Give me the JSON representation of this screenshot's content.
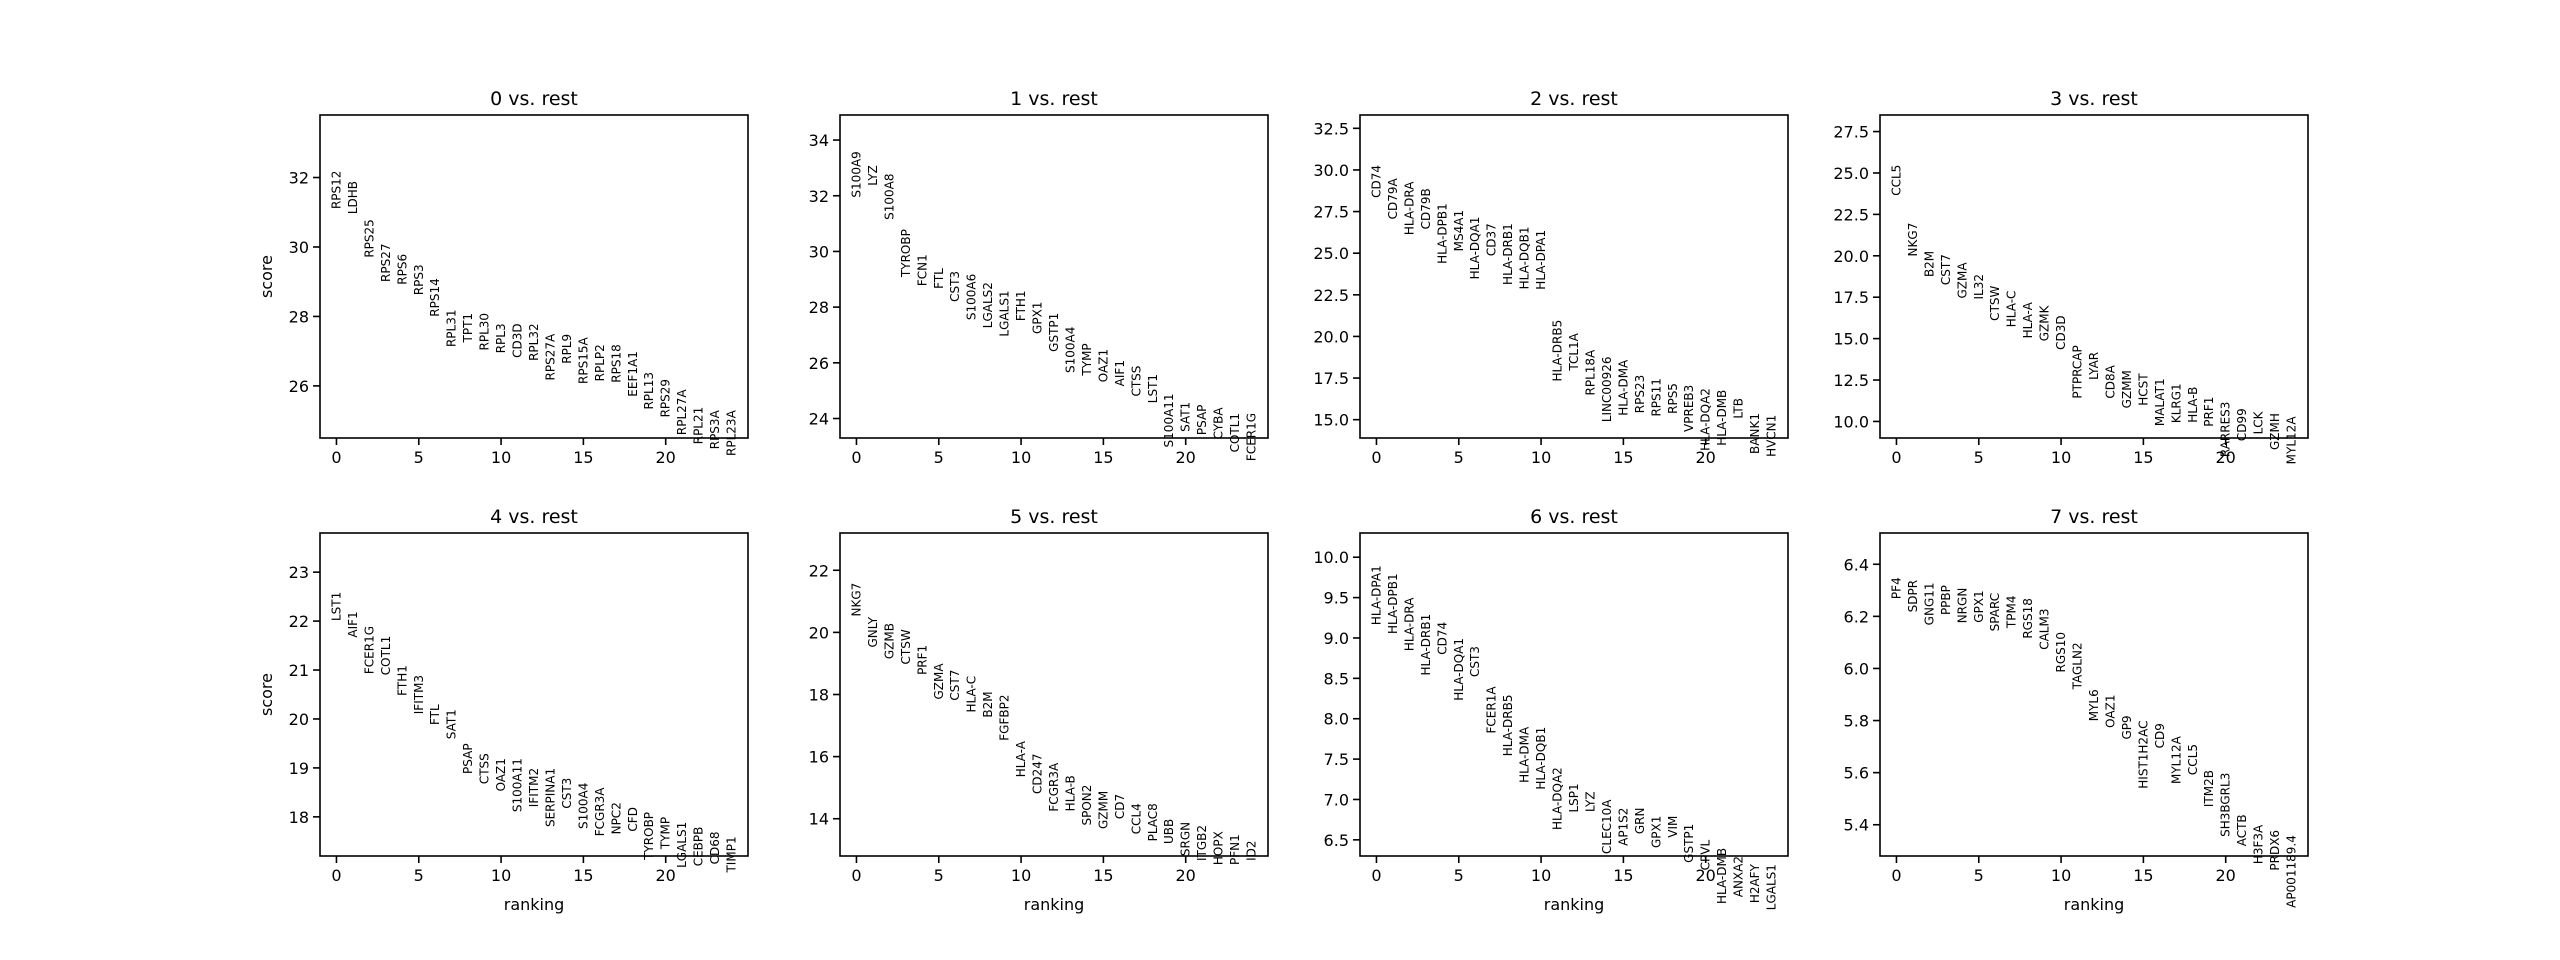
{
  "chart_data": [
    {
      "type": "scatter",
      "title": "0 vs. rest",
      "xlabel": "",
      "ylabel": "score",
      "xlim": [
        -1,
        25
      ],
      "ylim": [
        24.5,
        33.8
      ],
      "xticks": [
        0,
        5,
        10,
        15,
        20
      ],
      "yticks": [
        26,
        28,
        30,
        32
      ],
      "ytick_labels": [
        "26",
        "28",
        "30",
        "32"
      ],
      "genes": [
        "RPS12",
        "LDHB",
        "RPS25",
        "RPS27",
        "RPS6",
        "RPS3",
        "RPS14",
        "RPL31",
        "TPT1",
        "RPL30",
        "RPL3",
        "CD3D",
        "RPL32",
        "RPS27A",
        "RPL9",
        "RPS15A",
        "RPLP2",
        "RPS18",
        "EEF1A1",
        "RPL13",
        "RPS29",
        "RPL27A",
        "RPL21",
        "RPS3A",
        "RPL23A"
      ],
      "scores": [
        32.2,
        31.9,
        30.8,
        30.1,
        29.8,
        29.5,
        29.1,
        28.2,
        28.1,
        28.1,
        27.8,
        27.8,
        27.8,
        27.5,
        27.5,
        27.4,
        27.2,
        27.2,
        27.0,
        26.4,
        26.2,
        25.9,
        25.4,
        25.3,
        25.3
      ]
    },
    {
      "type": "scatter",
      "title": "1 vs. rest",
      "xlabel": "",
      "ylabel": "",
      "xlim": [
        -1,
        25
      ],
      "ylim": [
        23.3,
        34.9
      ],
      "xticks": [
        0,
        5,
        10,
        15,
        20
      ],
      "yticks": [
        24,
        26,
        28,
        30,
        32,
        34
      ],
      "ytick_labels": [
        "24",
        "26",
        "28",
        "30",
        "32",
        "34"
      ],
      "genes": [
        "S100A9",
        "LYZ",
        "S100A8",
        "TYROBP",
        "FCN1",
        "FTL",
        "CST3",
        "S100A6",
        "LGALS2",
        "LGALS1",
        "FTH1",
        "GPX1",
        "GSTP1",
        "S100A4",
        "TYMP",
        "OAZ1",
        "AIF1",
        "CTSS",
        "LST1",
        "S100A11",
        "SAT1",
        "PSAP",
        "CYBA",
        "COTL1",
        "FCER1G"
      ],
      "scores": [
        33.6,
        33.1,
        32.8,
        30.8,
        29.9,
        29.4,
        29.3,
        29.2,
        28.9,
        28.6,
        28.6,
        28.2,
        27.8,
        27.3,
        26.7,
        26.5,
        26.1,
        25.9,
        25.6,
        24.9,
        24.6,
        24.5,
        24.4,
        24.2,
        24.2
      ]
    },
    {
      "type": "scatter",
      "title": "2 vs. rest",
      "xlabel": "",
      "ylabel": "",
      "xlim": [
        -1,
        25
      ],
      "ylim": [
        13.9,
        33.3
      ],
      "xticks": [
        0,
        5,
        10,
        15,
        20
      ],
      "yticks": [
        15.0,
        17.5,
        20.0,
        22.5,
        25.0,
        27.5,
        30.0,
        32.5
      ],
      "ytick_labels": [
        "15.0",
        "17.5",
        "20.0",
        "22.5",
        "25.0",
        "27.5",
        "30.0",
        "32.5"
      ],
      "genes": [
        "CD74",
        "CD79A",
        "HLA-DRA",
        "CD79B",
        "HLA-DPB1",
        "MS4A1",
        "HLA-DQA1",
        "CD37",
        "HLA-DRB1",
        "HLA-DQB1",
        "HLA-DPA1",
        "HLA-DRB5",
        "TCL1A",
        "RPL18A",
        "LINC00926",
        "HLA-DMA",
        "RPS23",
        "RPS11",
        "RPS5",
        "VPREB3",
        "HLA-DQA2",
        "HLA-DMB",
        "LTB",
        "BANK1",
        "HVCN1"
      ],
      "scores": [
        30.3,
        29.5,
        29.3,
        28.9,
        28.0,
        27.6,
        27.2,
        26.8,
        26.8,
        26.6,
        26.4,
        21.0,
        20.2,
        19.2,
        18.8,
        18.6,
        17.7,
        17.5,
        17.2,
        17.1,
        16.9,
        16.8,
        16.3,
        15.4,
        15.3
      ]
    },
    {
      "type": "scatter",
      "title": "3 vs. rest",
      "xlabel": "",
      "ylabel": "",
      "xlim": [
        -1,
        25
      ],
      "ylim": [
        9.0,
        28.5
      ],
      "xticks": [
        0,
        5,
        10,
        15,
        20
      ],
      "yticks": [
        10.0,
        12.5,
        15.0,
        17.5,
        20.0,
        22.5,
        25.0,
        27.5
      ],
      "ytick_labels": [
        "10.0",
        "12.5",
        "15.0",
        "17.5",
        "20.0",
        "22.5",
        "25.0",
        "27.5"
      ],
      "genes": [
        "CCL5",
        "NKG7",
        "B2M",
        "CST7",
        "GZMA",
        "IL32",
        "CTSW",
        "HLA-C",
        "HLA-A",
        "GZMK",
        "CD3D",
        "PTPRCAP",
        "LYAR",
        "CD8A",
        "GZMM",
        "HCST",
        "MALAT1",
        "KLRG1",
        "HLA-B",
        "PRF1",
        "RARRES3",
        "CD99",
        "LCK",
        "GZMH",
        "MYL12A"
      ],
      "scores": [
        25.5,
        22.0,
        20.3,
        20.1,
        19.6,
        18.9,
        18.2,
        17.9,
        17.2,
        17.0,
        16.4,
        14.6,
        14.2,
        13.4,
        13.1,
        12.9,
        12.6,
        12.3,
        12.1,
        11.5,
        11.2,
        10.8,
        10.6,
        10.5,
        10.3
      ]
    },
    {
      "type": "scatter",
      "title": "4 vs. rest",
      "xlabel": "ranking",
      "ylabel": "score",
      "xlim": [
        -1,
        25
      ],
      "ylim": [
        17.2,
        23.8
      ],
      "xticks": [
        0,
        5,
        10,
        15,
        20
      ],
      "yticks": [
        18,
        19,
        20,
        21,
        22,
        23
      ],
      "ytick_labels": [
        "18",
        "19",
        "20",
        "21",
        "22",
        "23"
      ],
      "genes": [
        "LST1",
        "AIF1",
        "FCER1G",
        "COTL1",
        "FTH1",
        "IFITM3",
        "FTL",
        "SAT1",
        "PSAP",
        "CTSS",
        "OAZ1",
        "S100A11",
        "IFITM2",
        "SERPINA1",
        "CST3",
        "S100A4",
        "FCGR3A",
        "NPC2",
        "CFD",
        "TYROBP",
        "TYMP",
        "LGALS1",
        "CEBPB",
        "CD68",
        "TIMP1"
      ],
      "scores": [
        22.6,
        22.2,
        21.9,
        21.7,
        21.1,
        20.9,
        20.3,
        20.2,
        19.5,
        19.3,
        19.2,
        19.2,
        19.0,
        19.0,
        18.8,
        18.7,
        18.6,
        18.3,
        18.2,
        18.1,
        18.0,
        17.9,
        17.8,
        17.7,
        17.6
      ]
    },
    {
      "type": "scatter",
      "title": "5 vs. rest",
      "xlabel": "ranking",
      "ylabel": "",
      "xlim": [
        -1,
        25
      ],
      "ylim": [
        12.8,
        23.2
      ],
      "xticks": [
        0,
        5,
        10,
        15,
        20
      ],
      "yticks": [
        14,
        16,
        18,
        20,
        22
      ],
      "ytick_labels": [
        "14",
        "16",
        "18",
        "20",
        "22"
      ],
      "genes": [
        "NKG7",
        "GNLY",
        "GZMB",
        "CTSW",
        "PRF1",
        "GZMA",
        "CST7",
        "HLA-C",
        "B2M",
        "FGFBP2",
        "HLA-A",
        "CD247",
        "FCGR3A",
        "HLA-B",
        "SPON2",
        "GZMM",
        "CD7",
        "CCL4",
        "PLAC8",
        "UBB",
        "SRGN",
        "ITGB2",
        "HOPX",
        "PFN1",
        "ID2"
      ],
      "scores": [
        21.6,
        20.5,
        20.3,
        20.1,
        19.6,
        19.0,
        18.8,
        18.6,
        18.1,
        18.0,
        16.5,
        16.1,
        15.8,
        15.4,
        15.1,
        14.9,
        14.8,
        14.5,
        14.5,
        14.0,
        13.9,
        13.8,
        13.6,
        13.5,
        13.3
      ]
    },
    {
      "type": "scatter",
      "title": "6 vs. rest",
      "xlabel": "ranking",
      "ylabel": "",
      "xlim": [
        -1,
        25
      ],
      "ylim": [
        6.3,
        10.3
      ],
      "xticks": [
        0,
        5,
        10,
        15,
        20
      ],
      "yticks": [
        6.5,
        7.0,
        7.5,
        8.0,
        8.5,
        9.0,
        9.5,
        10.0
      ],
      "ytick_labels": [
        "6.5",
        "7.0",
        "7.5",
        "8.0",
        "8.5",
        "9.0",
        "9.5",
        "10.0"
      ],
      "genes": [
        "HLA-DPA1",
        "HLA-DPB1",
        "HLA-DRA",
        "HLA-DRB1",
        "CD74",
        "HLA-DQA1",
        "CST3",
        "FCER1A",
        "HLA-DRB5",
        "HLA-DMA",
        "HLA-DQB1",
        "HLA-DQA2",
        "LSP1",
        "LYZ",
        "CLEC10A",
        "AP1S2",
        "GRN",
        "GPX1",
        "VIM",
        "GSTP1",
        "CPVL",
        "HLA-DMB",
        "ANXA2",
        "H2AFY",
        "LGALS1"
      ],
      "scores": [
        9.9,
        9.8,
        9.5,
        9.3,
        9.2,
        9.0,
        8.9,
        8.4,
        8.3,
        7.9,
        7.9,
        7.4,
        7.2,
        7.1,
        7.0,
        6.9,
        6.9,
        6.8,
        6.8,
        6.7,
        6.5,
        6.4,
        6.3,
        6.2,
        6.2
      ]
    },
    {
      "type": "scatter",
      "title": "7 vs. rest",
      "xlabel": "ranking",
      "ylabel": "",
      "xlim": [
        -1,
        25
      ],
      "ylim": [
        5.28,
        6.52
      ],
      "xticks": [
        0,
        5,
        10,
        15,
        20
      ],
      "yticks": [
        5.4,
        5.6,
        5.8,
        6.0,
        6.2,
        6.4
      ],
      "ytick_labels": [
        "5.4",
        "5.6",
        "5.8",
        "6.0",
        "6.2",
        "6.4"
      ],
      "genes": [
        "PF4",
        "SDPR",
        "GNG11",
        "PPBP",
        "NRGN",
        "GPX1",
        "SPARC",
        "TPM4",
        "RGS18",
        "CALM3",
        "RGS10",
        "TAGLN2",
        "MYL6",
        "OAZ1",
        "GP9",
        "HIST1H2AC",
        "CD9",
        "MYL12A",
        "CCL5",
        "ITM2B",
        "SH3BGRL3",
        "ACTB",
        "H3F3A",
        "PRDX6",
        "AP001189.4"
      ],
      "scores": [
        6.35,
        6.34,
        6.33,
        6.32,
        6.31,
        6.3,
        6.29,
        6.28,
        6.27,
        6.23,
        6.14,
        6.1,
        5.92,
        5.9,
        5.82,
        5.8,
        5.79,
        5.74,
        5.71,
        5.61,
        5.6,
        5.44,
        5.4,
        5.38,
        5.36
      ]
    }
  ]
}
